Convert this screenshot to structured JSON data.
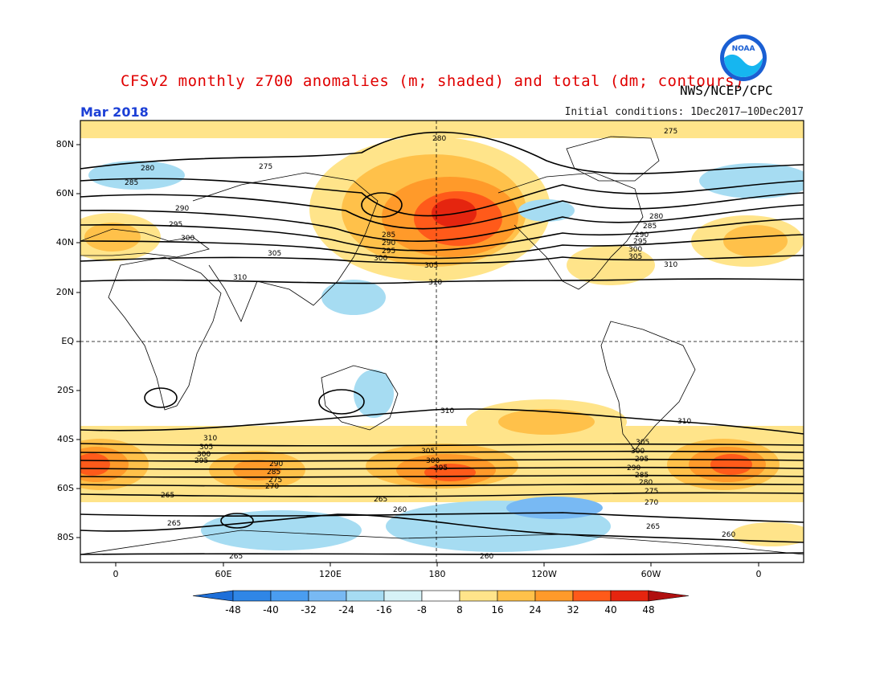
{
  "header": {
    "title": "CFSv2 monthly z700 anomalies (m; shaded) and total (dm; contours)",
    "agency": "NWS/NCEP/CPC",
    "month": "Mar 2018",
    "initial_conditions": "Initial conditions: 1Dec2017–10Dec2017"
  },
  "logo": {
    "text": "NOAA"
  },
  "map": {
    "lat_labels": [
      "80N",
      "60N",
      "40N",
      "20N",
      "EQ",
      "20S",
      "40S",
      "60S",
      "80S"
    ],
    "lon_labels": [
      "0",
      "60E",
      "120E",
      "180",
      "120W",
      "60W",
      "0"
    ],
    "contour_labels": [
      "275",
      "280",
      "285",
      "290",
      "295",
      "300",
      "305",
      "310",
      "265",
      "270",
      "260"
    ]
  },
  "colorbar": {
    "labels": [
      "-48",
      "-40",
      "-32",
      "-24",
      "-16",
      "-8",
      "8",
      "16",
      "24",
      "32",
      "40",
      "48"
    ],
    "colors": [
      "#1e6fd9",
      "#2f86e6",
      "#4a9df0",
      "#78b9f3",
      "#a6dcf2",
      "#d6f2f7",
      "#ffffff",
      "#ffe48a",
      "#ffc14a",
      "#ff9a2a",
      "#ff5a1a",
      "#e5250f",
      "#b01010"
    ]
  }
}
